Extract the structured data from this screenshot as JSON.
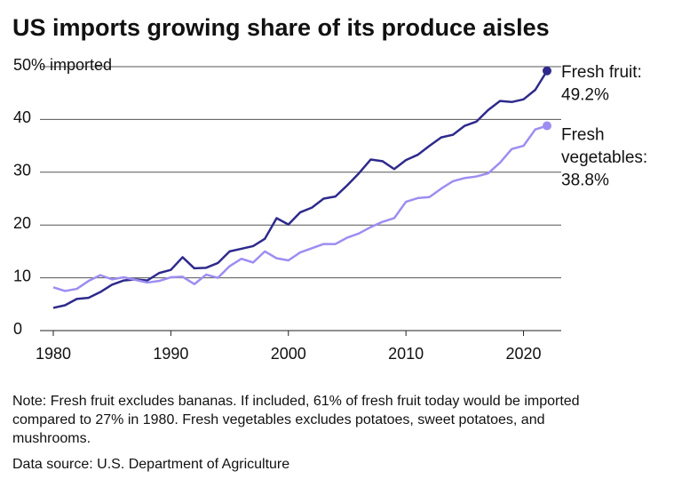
{
  "chart_data": {
    "type": "line",
    "title": "US imports growing share of its produce aisles",
    "x": [
      1980,
      1981,
      1982,
      1983,
      1984,
      1985,
      1986,
      1987,
      1988,
      1989,
      1990,
      1991,
      1992,
      1993,
      1994,
      1995,
      1996,
      1997,
      1998,
      1999,
      2000,
      2001,
      2002,
      2003,
      2004,
      2005,
      2006,
      2007,
      2008,
      2009,
      2010,
      2011,
      2012,
      2013,
      2014,
      2015,
      2016,
      2017,
      2018,
      2019,
      2020,
      2021,
      2022
    ],
    "series": [
      {
        "color": "#2e2a8c",
        "label_lines": [
          "Fresh fruit:",
          "49.2%"
        ],
        "values": [
          4.3,
          4.8,
          6.0,
          6.2,
          7.3,
          8.7,
          9.5,
          9.7,
          9.5,
          10.9,
          11.5,
          13.9,
          11.8,
          11.9,
          12.8,
          15.0,
          15.5,
          16.0,
          17.4,
          21.3,
          20.1,
          22.4,
          23.3,
          25.0,
          25.4,
          27.5,
          29.8,
          32.4,
          32.1,
          30.6,
          32.3,
          33.3,
          35.0,
          36.6,
          37.1,
          38.8,
          39.6,
          41.8,
          43.5,
          43.3,
          43.8,
          45.6,
          49.2
        ]
      },
      {
        "color": "#9d8df1",
        "label_lines": [
          "Fresh",
          "vegetables:",
          "38.8%"
        ],
        "values": [
          8.2,
          7.5,
          7.9,
          9.4,
          10.5,
          9.7,
          10.1,
          9.6,
          9.1,
          9.4,
          10.1,
          10.2,
          8.8,
          10.6,
          10.0,
          12.2,
          13.6,
          12.9,
          15.0,
          13.7,
          13.3,
          14.8,
          15.6,
          16.4,
          16.4,
          17.6,
          18.4,
          19.6,
          20.6,
          21.3,
          24.4,
          25.1,
          25.3,
          26.9,
          28.3,
          28.9,
          29.2,
          29.8,
          31.8,
          34.4,
          35.0,
          38.1,
          38.8
        ]
      }
    ],
    "xlim": [
      1980,
      2022
    ],
    "xticks": [
      1980,
      1990,
      2000,
      2010,
      2020
    ],
    "ylim": [
      0,
      50
    ],
    "yticks": [
      0,
      10,
      20,
      30,
      40,
      {
        "value": 50,
        "label": "50% imported"
      }
    ],
    "grid": true,
    "note_lines": [
      "Note: Fresh fruit excludes bananas. If included, 61% of fresh fruit today would be imported",
      "compared to 27% in 1980. Fresh vegetables excludes potatoes, sweet potatoes, and",
      "mushrooms."
    ],
    "source": "Data source: U.S. Department of Agriculture"
  }
}
